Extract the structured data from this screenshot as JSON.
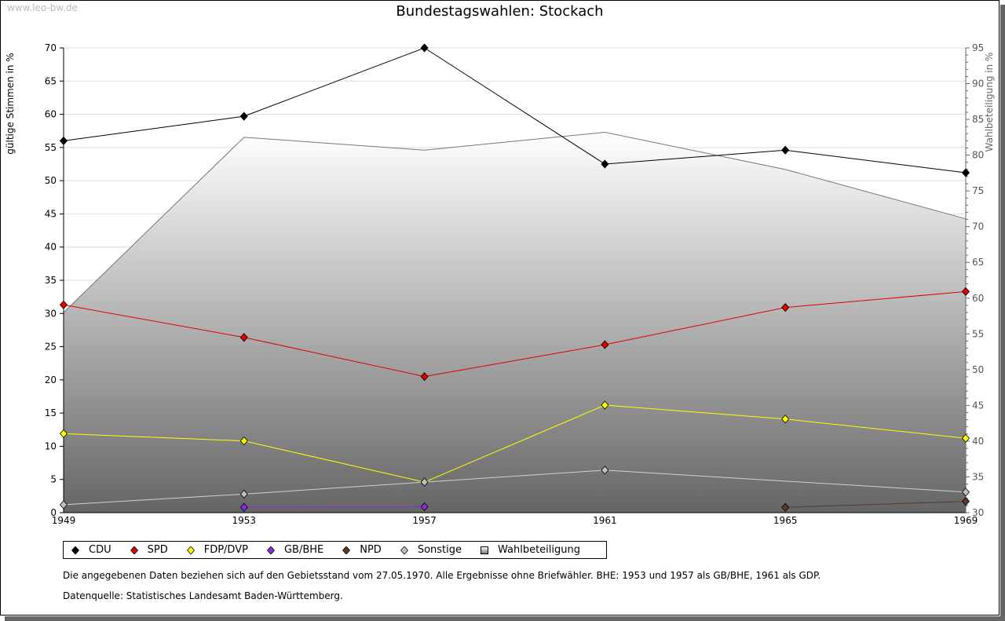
{
  "watermark": "www.leo-bw.de",
  "chart_data": {
    "type": "line",
    "title": "Bundestagswahlen: Stockach",
    "ylabel": "gültige Stimmen in %",
    "y2label": "Wahlbeteiligung in %",
    "x": [
      1949,
      1953,
      1957,
      1961,
      1965,
      1969
    ],
    "ylim": [
      0,
      70
    ],
    "y2lim": [
      30,
      95
    ],
    "yticks": [
      0,
      5,
      10,
      15,
      20,
      25,
      30,
      35,
      40,
      45,
      50,
      55,
      60,
      65,
      70
    ],
    "y2ticks": [
      30,
      35,
      40,
      45,
      50,
      55,
      60,
      65,
      70,
      75,
      80,
      85,
      90,
      95
    ],
    "grid": true,
    "legend_position": "bottom",
    "series": [
      {
        "name": "CDU",
        "color": "#000000",
        "values": [
          56.0,
          59.7,
          70.0,
          52.5,
          54.6,
          51.2
        ]
      },
      {
        "name": "SPD",
        "color": "#e00000",
        "values": [
          31.3,
          26.4,
          20.5,
          25.3,
          30.9,
          33.3
        ]
      },
      {
        "name": "FDP/DVP",
        "color": "#ffff00",
        "values": [
          11.9,
          10.8,
          4.6,
          16.2,
          14.1,
          11.2
        ]
      },
      {
        "name": "GB/BHE",
        "color": "#8a2be2",
        "values": [
          null,
          0.8,
          0.9,
          null,
          null,
          null
        ]
      },
      {
        "name": "NPD",
        "color": "#5a3a28",
        "values": [
          null,
          null,
          null,
          null,
          0.8,
          1.7
        ]
      },
      {
        "name": "Sonstige",
        "color": "#c0c0c0",
        "values": [
          1.2,
          2.8,
          4.6,
          6.4,
          null,
          3.1
        ]
      }
    ],
    "area_series": {
      "name": "Wahlbeteiligung",
      "axis": "right",
      "values": [
        58.0,
        82.5,
        80.7,
        83.2,
        78.0,
        71.1
      ]
    }
  },
  "notes": [
    "Die angegebenen Daten beziehen sich auf den Gebietsstand vom 27.05.1970. Alle Ergebnisse ohne Briefwähler. BHE: 1953 und 1957 als GB/BHE, 1961 als GDP.",
    "Datenquelle: Statistisches Landesamt Baden-Württemberg."
  ]
}
